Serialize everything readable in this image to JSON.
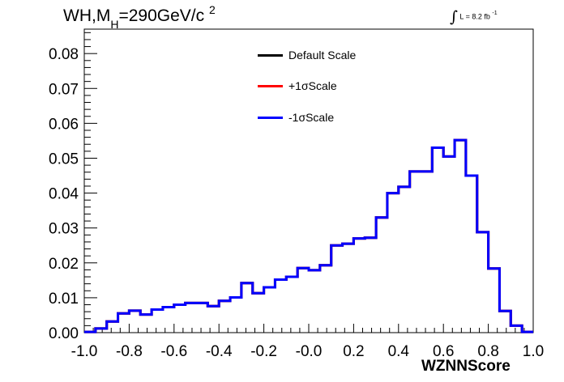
{
  "title": {
    "prefix": "WH,M",
    "subscript": "H",
    "middle": "=290GeV/c",
    "superscript": "2"
  },
  "lumi": {
    "integral": "∫",
    "text": "L = 8.2 fb",
    "unit_sup": "-1"
  },
  "colors": {
    "default": "#000000",
    "plus": "#ff0000",
    "minus": "#0000ff"
  },
  "chart_data": {
    "type": "line",
    "style": "step-histogram",
    "title": "WH,M_H=290GeV/c^2",
    "xlabel": "WZNNScore",
    "ylabel": "",
    "xlim": [
      -1.0,
      1.0
    ],
    "ylim": [
      0.0,
      0.087
    ],
    "x_ticks": [
      -1.0,
      -0.8,
      -0.6,
      -0.4,
      -0.2,
      0.0,
      0.2,
      0.4,
      0.6,
      0.8,
      1.0
    ],
    "x_tick_labels": [
      "-1.0",
      "-0.8",
      "-0.6",
      "-0.4",
      "-0.2",
      "-0.0",
      "0.2",
      "0.4",
      "0.6",
      "0.8",
      "1.0"
    ],
    "y_ticks": [
      0.0,
      0.01,
      0.02,
      0.03,
      0.04,
      0.05,
      0.06,
      0.07,
      0.08
    ],
    "y_tick_labels": [
      "0.00",
      "0.01",
      "0.02",
      "0.03",
      "0.04",
      "0.05",
      "0.06",
      "0.07",
      "0.08"
    ],
    "bin_edges": [
      -1.0,
      -0.95,
      -0.9,
      -0.85,
      -0.8,
      -0.75,
      -0.7,
      -0.65,
      -0.6,
      -0.55,
      -0.5,
      -0.45,
      -0.4,
      -0.35,
      -0.3,
      -0.25,
      -0.2,
      -0.15,
      -0.1,
      -0.05,
      0.0,
      0.05,
      0.1,
      0.15,
      0.2,
      0.25,
      0.3,
      0.35,
      0.4,
      0.45,
      0.5,
      0.55,
      0.6,
      0.65,
      0.7,
      0.75,
      0.8,
      0.85,
      0.9,
      0.95,
      1.0
    ],
    "series": [
      {
        "name": "Default Scale",
        "color": "#000000",
        "values": [
          0.0002,
          0.0012,
          0.0032,
          0.0055,
          0.0063,
          0.0052,
          0.0066,
          0.0073,
          0.008,
          0.0085,
          0.0085,
          0.0076,
          0.0091,
          0.0101,
          0.0142,
          0.0113,
          0.013,
          0.0152,
          0.016,
          0.0185,
          0.0179,
          0.0193,
          0.025,
          0.0255,
          0.027,
          0.0272,
          0.033,
          0.04,
          0.0418,
          0.0462,
          0.0462,
          0.053,
          0.0505,
          0.0552,
          0.045,
          0.0288,
          0.0184,
          0.0062,
          0.002,
          0.0002
        ]
      },
      {
        "name": "+1σScale",
        "color": "#ff0000",
        "values": [
          0.0002,
          0.0012,
          0.0032,
          0.0055,
          0.0063,
          0.0052,
          0.0066,
          0.0073,
          0.008,
          0.0085,
          0.0085,
          0.0076,
          0.0091,
          0.0101,
          0.0142,
          0.0113,
          0.013,
          0.0152,
          0.016,
          0.0185,
          0.0179,
          0.0193,
          0.025,
          0.0255,
          0.027,
          0.0272,
          0.033,
          0.04,
          0.0418,
          0.0462,
          0.0462,
          0.053,
          0.0505,
          0.0552,
          0.045,
          0.0288,
          0.0184,
          0.0062,
          0.002,
          0.0002
        ]
      },
      {
        "name": "-1σScale",
        "color": "#0000ff",
        "values": [
          0.0002,
          0.0012,
          0.0032,
          0.0055,
          0.0063,
          0.0052,
          0.0066,
          0.0073,
          0.008,
          0.0085,
          0.0085,
          0.0076,
          0.0091,
          0.0101,
          0.0142,
          0.0113,
          0.013,
          0.0152,
          0.016,
          0.0185,
          0.0179,
          0.0193,
          0.025,
          0.0255,
          0.027,
          0.0272,
          0.033,
          0.04,
          0.0418,
          0.0462,
          0.0462,
          0.053,
          0.0505,
          0.0552,
          0.045,
          0.0288,
          0.0184,
          0.0062,
          0.002,
          0.0002
        ]
      }
    ],
    "legend": {
      "placement": "top-center",
      "entries": [
        "Default Scale",
        "+1σScale",
        "-1σScale"
      ]
    },
    "grid": false
  }
}
